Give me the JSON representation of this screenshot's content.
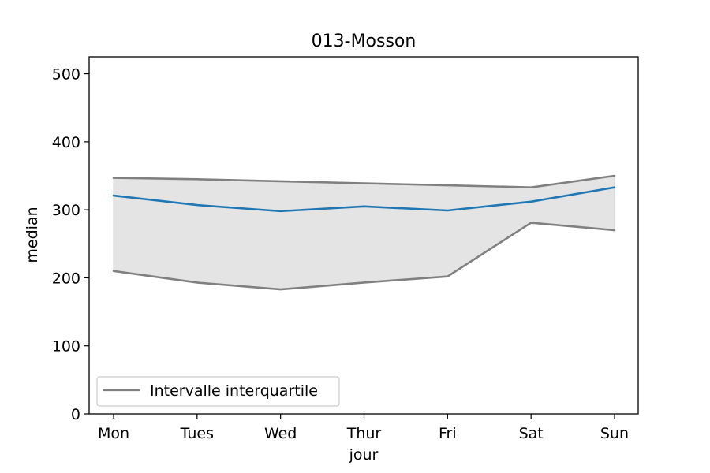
{
  "chart_data": {
    "type": "line",
    "title": "013-Mosson",
    "xlabel": "jour",
    "ylabel": "median",
    "categories": [
      "Mon",
      "Tues",
      "Wed",
      "Thur",
      "Fri",
      "Sat",
      "Sun"
    ],
    "ylim": [
      0,
      525
    ],
    "yticks": [
      0,
      100,
      200,
      300,
      400,
      500
    ],
    "grid": false,
    "legend_position": "bottom-left",
    "series": [
      {
        "role": "median",
        "color": "#1f77b4",
        "values": [
          321,
          307,
          298,
          305,
          299,
          312,
          333
        ]
      },
      {
        "role": "upper-quartile",
        "name": "Intervalle interquartile",
        "color": "#808080",
        "values": [
          347,
          345,
          342,
          339,
          336,
          333,
          350
        ]
      },
      {
        "role": "lower-quartile",
        "color": "#808080",
        "values": [
          210,
          193,
          183,
          193,
          202,
          281,
          270
        ]
      }
    ],
    "band_color": "#e4e4e4"
  }
}
